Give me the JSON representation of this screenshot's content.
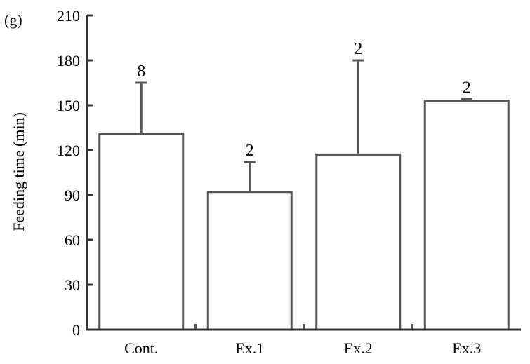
{
  "panel_label": "(g)",
  "chart_data": {
    "type": "bar",
    "categories": [
      "Cont.",
      "Ex.1",
      "Ex.2",
      "Ex.3"
    ],
    "values": [
      131,
      92,
      117,
      153
    ],
    "error_upper": [
      165,
      112,
      180,
      154
    ],
    "n_labels": [
      "8",
      "2",
      "2",
      "2"
    ],
    "ylabel": "Feeding time (min)",
    "xlabel": "",
    "ylim": [
      0,
      210
    ],
    "yticks": [
      0,
      30,
      60,
      90,
      120,
      150,
      180,
      210
    ],
    "grid": false,
    "bar_fill": "#ffffff",
    "bar_stroke": "#555555",
    "axis_color": "#333333"
  }
}
